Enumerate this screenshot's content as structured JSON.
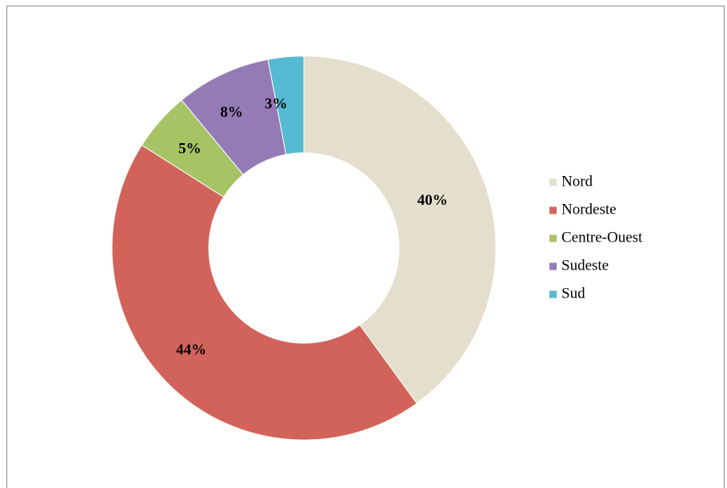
{
  "chart_data": {
    "type": "pie",
    "donut": true,
    "categories": [
      "Nord",
      "Nordeste",
      "Centre-Ouest",
      "Sudeste",
      "Sud"
    ],
    "values": [
      40,
      44,
      5,
      8,
      3
    ],
    "data_labels": [
      "40%",
      "44%",
      "5%",
      "8%",
      "3%"
    ],
    "colors": [
      "#e3dfcc",
      "#d2635a",
      "#a6c366",
      "#957bb6",
      "#55bad2"
    ],
    "legend": {
      "position": "right",
      "entries": [
        "Nord",
        "Nordeste",
        "Centre-Ouest",
        "Sudeste",
        "Sud"
      ]
    },
    "title": "",
    "slice_border_color": "#ffffff"
  }
}
